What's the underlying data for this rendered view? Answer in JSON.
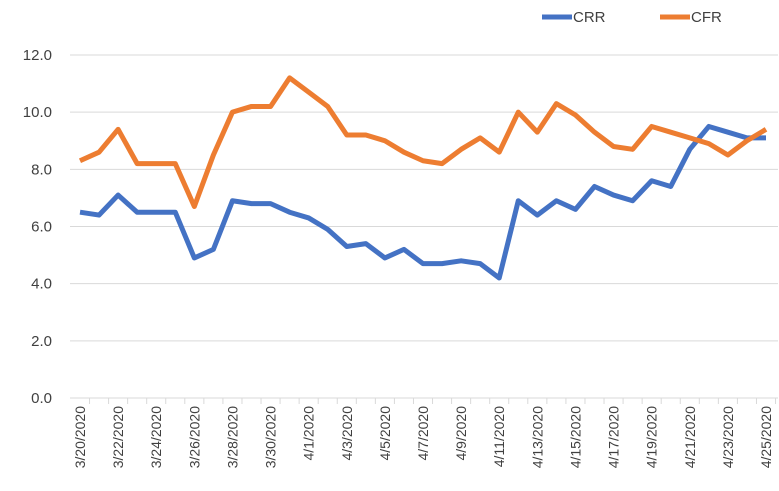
{
  "chart_data": {
    "type": "line",
    "categories": [
      "3/20/2020",
      null,
      "3/22/2020",
      null,
      "3/24/2020",
      null,
      "3/26/2020",
      null,
      "3/28/2020",
      null,
      "3/30/2020",
      null,
      "4/1/2020",
      null,
      "4/3/2020",
      null,
      "4/5/2020",
      null,
      "4/7/2020",
      null,
      "4/9/2020",
      null,
      "4/11/2020",
      null,
      "4/13/2020",
      null,
      "4/15/2020",
      null,
      "4/17/2020",
      null,
      "4/19/2020",
      null,
      "4/21/2020",
      null,
      "4/23/2020",
      null,
      "4/25/2020"
    ],
    "series": [
      {
        "name": "CRR",
        "color": "#4472c4",
        "values": [
          6.5,
          6.4,
          7.1,
          6.5,
          6.5,
          6.5,
          4.9,
          5.2,
          6.9,
          6.8,
          6.8,
          6.5,
          6.3,
          5.9,
          5.3,
          5.4,
          4.9,
          5.2,
          4.7,
          4.7,
          4.8,
          4.7,
          4.2,
          6.9,
          6.4,
          6.9,
          6.6,
          7.4,
          7.1,
          6.9,
          7.6,
          7.4,
          8.7,
          9.5,
          9.3,
          9.1,
          9.1
        ]
      },
      {
        "name": "CFR",
        "color": "#ed7d31",
        "values": [
          8.3,
          8.6,
          9.4,
          8.2,
          8.2,
          8.2,
          6.7,
          8.5,
          10.0,
          10.2,
          10.2,
          11.2,
          10.7,
          10.2,
          9.2,
          9.2,
          9.0,
          8.6,
          8.3,
          8.2,
          8.7,
          9.1,
          8.6,
          10.0,
          9.3,
          10.3,
          9.9,
          9.3,
          8.8,
          8.7,
          9.5,
          9.3,
          9.1,
          8.9,
          8.5,
          9.0,
          9.4
        ]
      }
    ],
    "ylim": [
      0,
      12
    ],
    "yticks": [
      {
        "value": 0,
        "label": "0.0"
      },
      {
        "value": 2,
        "label": "2.0"
      },
      {
        "value": 4,
        "label": "4.0"
      },
      {
        "value": 6,
        "label": "6.0"
      },
      {
        "value": 8,
        "label": "8.0"
      },
      {
        "value": 10,
        "label": "10.0"
      },
      {
        "value": 12,
        "label": "12.0"
      }
    ],
    "grid": true,
    "legend": "top-right"
  }
}
